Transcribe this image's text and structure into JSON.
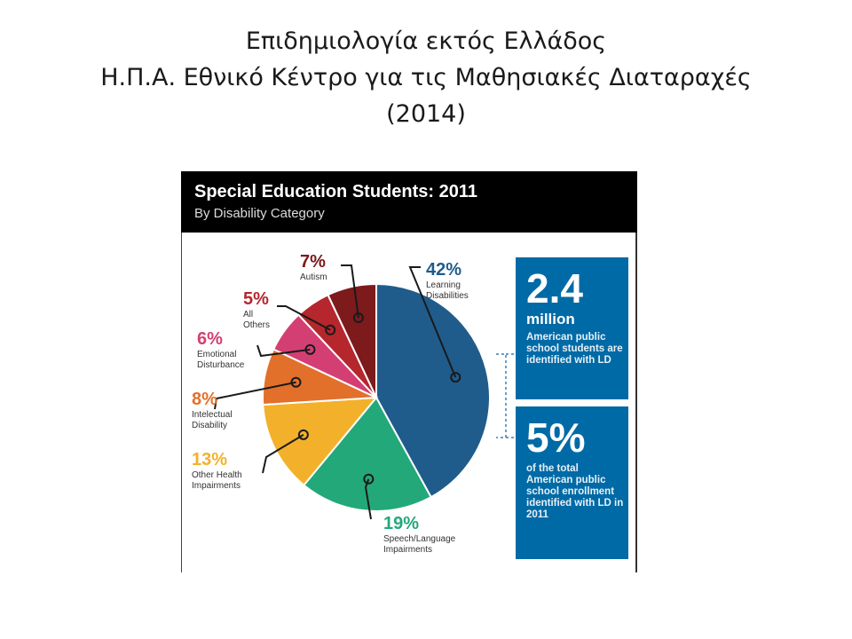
{
  "slide": {
    "title_line1": "Επιδημιολογία εκτός Ελλάδος",
    "title_line2": "Η.Π.Α. Εθνικό Κέντρο για τις Μαθησιακές Διαταραχές",
    "title_line3": "(2014)"
  },
  "chart_data": {
    "type": "pie",
    "title": "Special Education Students: 2011",
    "subtitle": "By Disability Category",
    "slices": [
      {
        "label": "Learning Disabilities",
        "value": 42,
        "pct_text": "42%",
        "color": "#1f5c8b"
      },
      {
        "label": "Speech/Language Impairments",
        "value": 19,
        "pct_text": "19%",
        "color": "#23a87a"
      },
      {
        "label": "Other Health Impairments",
        "value": 13,
        "pct_text": "13%",
        "color": "#f3b12b"
      },
      {
        "label": "Intelectual Disability",
        "value": 8,
        "pct_text": "8%",
        "color": "#e2702b"
      },
      {
        "label": "Emotional Disturbance",
        "value": 6,
        "pct_text": "6%",
        "color": "#d43f73"
      },
      {
        "label": "All Others",
        "value": 5,
        "pct_text": "5%",
        "color": "#b5272d"
      },
      {
        "label": "Autism",
        "value": 7,
        "pct_text": "7%",
        "color": "#7d1a1c"
      }
    ]
  },
  "stats": {
    "box1": {
      "big": "2.4",
      "mid": "million",
      "text": "American public school students are identified with LD"
    },
    "box2": {
      "big": "5%",
      "text": "of the total American public school enrollment identified with LD in 2011"
    }
  }
}
